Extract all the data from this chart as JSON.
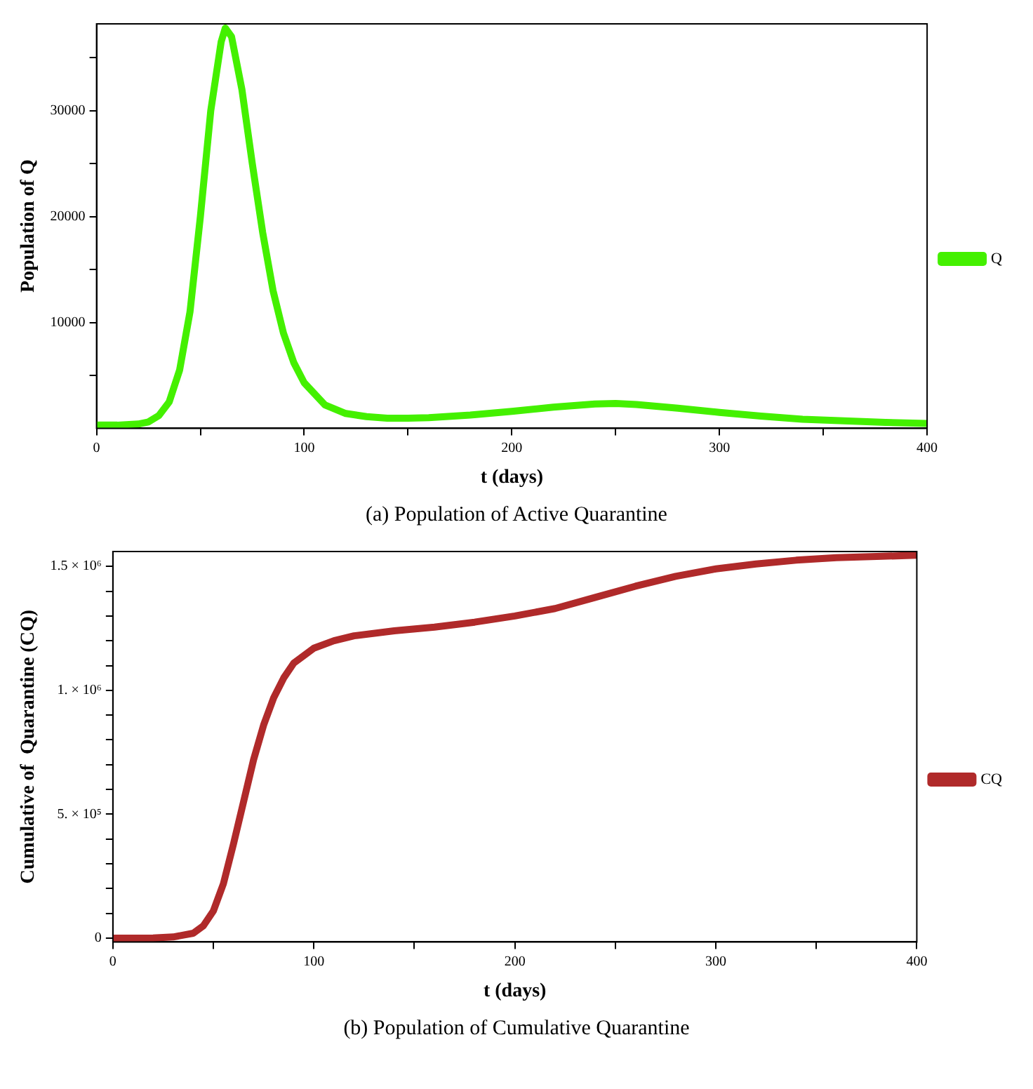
{
  "chart_data": [
    {
      "type": "line",
      "xlabel": "t (days)",
      "ylabel": "Population of Q",
      "annotations": [
        "(a) Population of Active Quarantine"
      ],
      "xlim": [
        0,
        400
      ],
      "ylim": [
        0,
        38200
      ],
      "xticks": [
        0,
        {
          "value": 50,
          "label": null
        },
        100,
        {
          "value": 150,
          "label": null
        },
        200,
        {
          "value": 250,
          "label": null
        },
        300,
        {
          "value": 350,
          "label": null
        },
        400
      ],
      "yticks": [
        {
          "value": 5000,
          "label": null
        },
        10000,
        {
          "value": 15000,
          "label": null
        },
        20000,
        {
          "value": 25000,
          "label": null
        },
        30000,
        {
          "value": 35000,
          "label": null
        }
      ],
      "grid": false,
      "legend": "right",
      "marker": "none",
      "line_style": "solid",
      "series": [
        {
          "name": "Q",
          "color": "#44f000",
          "x": [
            0,
            10,
            20,
            25,
            30,
            35,
            40,
            45,
            50,
            55,
            60,
            62,
            65,
            70,
            75,
            80,
            85,
            90,
            95,
            100,
            110,
            120,
            130,
            140,
            150,
            160,
            180,
            200,
            220,
            240,
            250,
            260,
            280,
            300,
            320,
            340,
            360,
            380,
            400
          ],
          "values": [
            300,
            300,
            400,
            600,
            1200,
            2500,
            5500,
            11000,
            20000,
            30000,
            36500,
            37800,
            37000,
            32000,
            25000,
            18500,
            13000,
            9000,
            6200,
            4300,
            2200,
            1400,
            1100,
            950,
            950,
            1000,
            1250,
            1600,
            2000,
            2300,
            2350,
            2250,
            1900,
            1500,
            1150,
            850,
            700,
            550,
            450
          ]
        }
      ]
    },
    {
      "type": "line",
      "xlabel": "t (days)",
      "ylabel": "Cumulative of  Quarantine (CQ)",
      "annotations": [
        "(b) Population of Cumulative Quarantine"
      ],
      "xlim": [
        0,
        400
      ],
      "ylim": [
        -15000,
        1560000
      ],
      "xticks": [
        0,
        {
          "value": 50,
          "label": null
        },
        100,
        {
          "value": 150,
          "label": null
        },
        200,
        {
          "value": 250,
          "label": null
        },
        300,
        {
          "value": 350,
          "label": null
        },
        400
      ],
      "yticks": [
        0,
        {
          "value": 100000,
          "label": null
        },
        {
          "value": 200000,
          "label": null
        },
        {
          "value": 300000,
          "label": null
        },
        {
          "value": 400000,
          "label": null
        },
        {
          "value": 500000,
          "label": "5. × 10⁵"
        },
        {
          "value": 600000,
          "label": null
        },
        {
          "value": 700000,
          "label": null
        },
        {
          "value": 800000,
          "label": null
        },
        {
          "value": 900000,
          "label": null
        },
        {
          "value": 1000000,
          "label": "1. × 10⁶"
        },
        {
          "value": 1100000,
          "label": null
        },
        {
          "value": 1200000,
          "label": null
        },
        {
          "value": 1300000,
          "label": null
        },
        {
          "value": 1400000,
          "label": null
        },
        {
          "value": 1500000,
          "label": "1.5 × 10⁶"
        }
      ],
      "grid": false,
      "legend": "right",
      "marker": "none",
      "line_style": "solid",
      "series": [
        {
          "name": "CQ",
          "color": "#b02a2a",
          "x": [
            0,
            20,
            30,
            40,
            45,
            50,
            55,
            60,
            65,
            70,
            75,
            80,
            85,
            90,
            100,
            110,
            120,
            140,
            160,
            180,
            200,
            220,
            240,
            260,
            280,
            300,
            320,
            340,
            360,
            380,
            400
          ],
          "values": [
            0,
            1000,
            5000,
            20000,
            50000,
            110000,
            220000,
            380000,
            550000,
            720000,
            860000,
            970000,
            1050000,
            1110000,
            1170000,
            1200000,
            1220000,
            1240000,
            1255000,
            1275000,
            1300000,
            1330000,
            1375000,
            1420000,
            1460000,
            1490000,
            1510000,
            1525000,
            1535000,
            1540000,
            1545000
          ]
        }
      ]
    }
  ]
}
